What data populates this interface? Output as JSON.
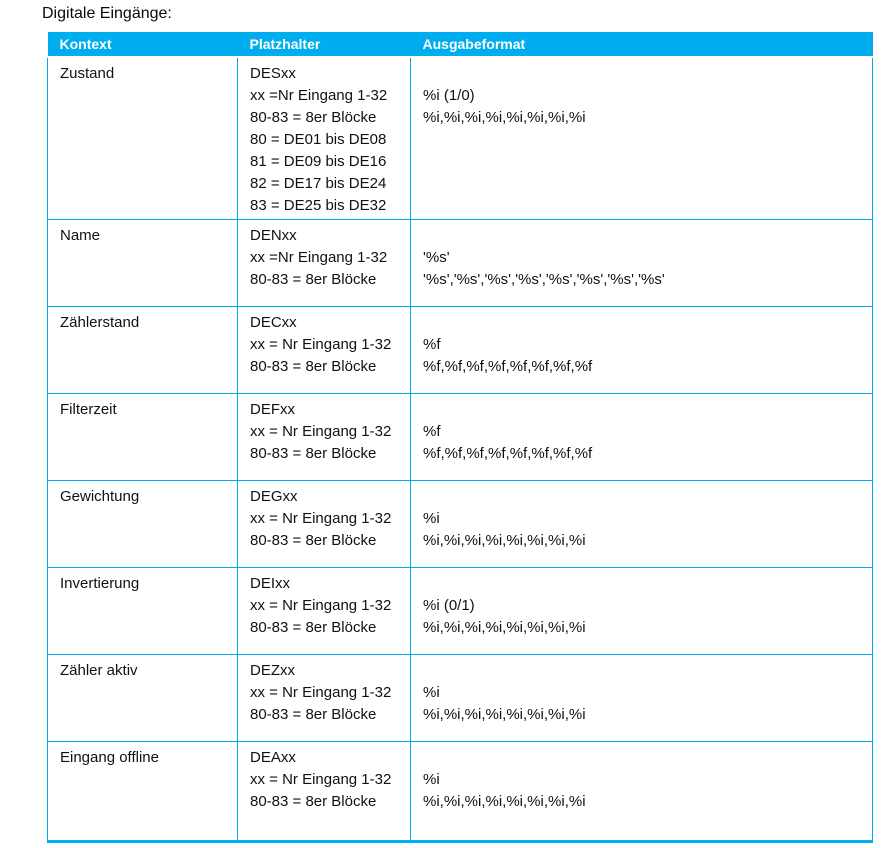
{
  "title": "Digitale Eingänge:",
  "colors": {
    "accent": "#00AEEF",
    "header_text": "#FFFFFF",
    "body_text": "#111111"
  },
  "table": {
    "headers": [
      "Kontext",
      "Platzhalter",
      "Ausgabeformat"
    ],
    "rows": [
      {
        "kontext": "Zustand",
        "platzhalter": [
          "DESxx",
          "xx =Nr Eingang 1-32",
          "80-83 = 8er Blöcke",
          "80 = DE01 bis DE08",
          "81 = DE09 bis DE16",
          "82 = DE17 bis DE24",
          "83 = DE25 bis DE32"
        ],
        "ausgabeformat": [
          "",
          "%i (1/0)",
          "%i,%i,%i,%i,%i,%i,%i,%i"
        ]
      },
      {
        "kontext": "Name",
        "platzhalter": [
          "DENxx",
          "xx =Nr Eingang 1-32",
          "80-83 = 8er Blöcke"
        ],
        "ausgabeformat": [
          "",
          "'%s'",
          "'%s','%s','%s','%s','%s','%s','%s','%s'"
        ]
      },
      {
        "kontext": "Zählerstand",
        "platzhalter": [
          "DECxx",
          "xx = Nr Eingang 1-32",
          "80-83 = 8er Blöcke"
        ],
        "ausgabeformat": [
          "",
          "%f",
          "%f,%f,%f,%f,%f,%f,%f,%f"
        ]
      },
      {
        "kontext": "Filterzeit",
        "platzhalter": [
          "DEFxx",
          "xx = Nr Eingang 1-32",
          "80-83 = 8er Blöcke"
        ],
        "ausgabeformat": [
          "",
          "%f",
          "%f,%f,%f,%f,%f,%f,%f,%f"
        ]
      },
      {
        "kontext": "Gewichtung",
        "platzhalter": [
          "DEGxx",
          "xx = Nr Eingang 1-32",
          "80-83 = 8er Blöcke"
        ],
        "ausgabeformat": [
          "",
          "%i",
          "%i,%i,%i,%i,%i,%i,%i,%i"
        ]
      },
      {
        "kontext": "Invertierung",
        "platzhalter": [
          "DEIxx",
          "xx = Nr Eingang 1-32",
          "80-83 = 8er Blöcke"
        ],
        "ausgabeformat": [
          "",
          "%i (0/1)",
          "%i,%i,%i,%i,%i,%i,%i,%i"
        ]
      },
      {
        "kontext": "Zähler aktiv",
        "platzhalter": [
          "DEZxx",
          "xx = Nr Eingang 1-32",
          "80-83 = 8er Blöcke"
        ],
        "ausgabeformat": [
          "",
          "%i",
          "%i,%i,%i,%i,%i,%i,%i,%i"
        ]
      },
      {
        "kontext": "Eingang offline",
        "platzhalter": [
          "DEAxx",
          "xx = Nr Eingang 1-32",
          "80-83 = 8er Blöcke"
        ],
        "ausgabeformat": [
          "",
          "%i",
          "%i,%i,%i,%i,%i,%i,%i,%i"
        ]
      }
    ]
  }
}
